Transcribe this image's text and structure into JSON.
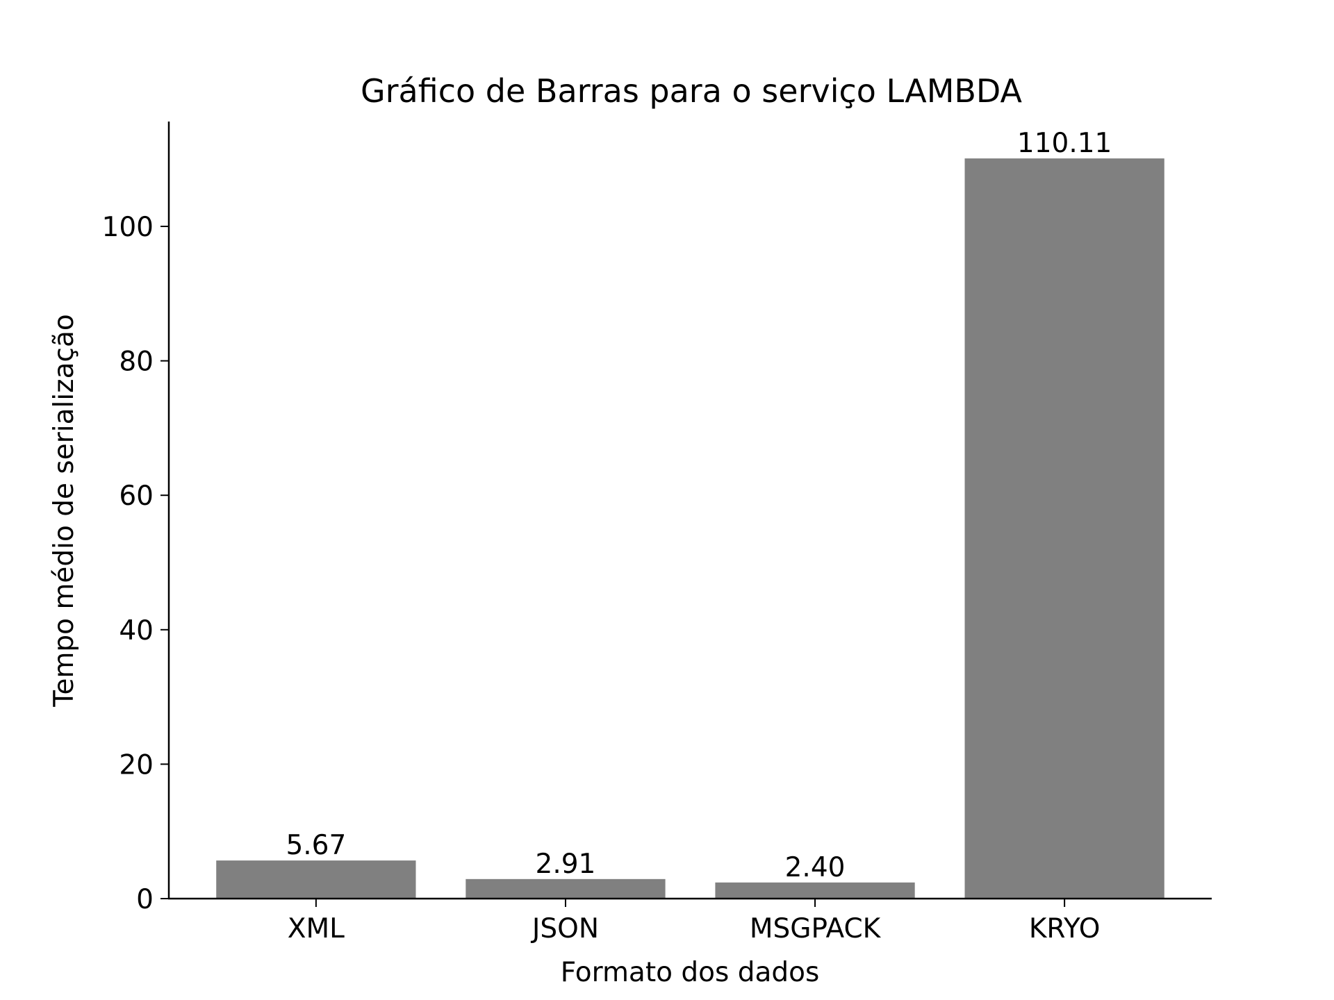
{
  "chart_data": {
    "type": "bar",
    "title": "Gráfico de Barras para o serviço LAMBDA",
    "xlabel": "Formato dos dados",
    "ylabel": "Tempo médio de serialização",
    "categories": [
      "XML",
      "JSON",
      "MSGPACK",
      "KRYO"
    ],
    "values": [
      5.67,
      2.91,
      2.4,
      110.11
    ],
    "data_labels": [
      "5.67",
      "2.91",
      "2.40",
      "110.11"
    ],
    "ylim": [
      0,
      115.6
    ],
    "yticks": [
      0,
      20,
      40,
      60,
      80,
      100
    ],
    "bar_color": "#808080",
    "grid": false,
    "legend": "none"
  }
}
